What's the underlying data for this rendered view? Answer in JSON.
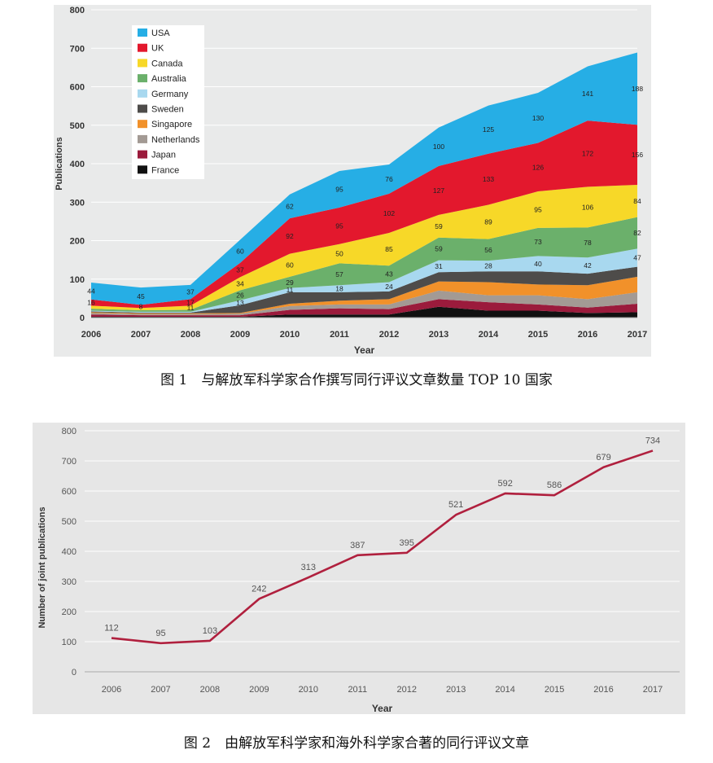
{
  "figures": [
    {
      "caption": "图 1　与解放军科学家合作撰写同行评议文章数量 TOP 10 国家"
    },
    {
      "caption": "图 2　由解放军科学家和海外科学家合著的同行评议文章"
    }
  ],
  "chart_data": [
    {
      "type": "area",
      "stacked": true,
      "xlabel": "Year",
      "ylabel": "Publications",
      "ylim": [
        0,
        800
      ],
      "yticks": [
        0,
        100,
        200,
        300,
        400,
        500,
        600,
        700,
        800
      ],
      "x": [
        "2006",
        "2007",
        "2008",
        "2009",
        "2010",
        "2011",
        "2012",
        "2013",
        "2014",
        "2015",
        "2016",
        "2017"
      ],
      "grid": true,
      "legend_position": "top-left",
      "series": [
        {
          "name": "France",
          "color": "#111111",
          "values": [
            2,
            2,
            2,
            2,
            8,
            8,
            8,
            28,
            18,
            18,
            12,
            14
          ],
          "labels": []
        },
        {
          "name": "Japan",
          "color": "#9b1b3c",
          "values": [
            6,
            4,
            4,
            4,
            12,
            16,
            14,
            20,
            22,
            16,
            14,
            22
          ],
          "labels": []
        },
        {
          "name": "Netherlands",
          "color": "#a39a94",
          "values": [
            4,
            3,
            3,
            4,
            10,
            10,
            12,
            22,
            18,
            24,
            22,
            30
          ],
          "labels": []
        },
        {
          "name": "Singapore",
          "color": "#f1912a",
          "values": [
            2,
            2,
            2,
            2,
            6,
            10,
            14,
            24,
            34,
            28,
            36,
            40
          ],
          "labels": []
        },
        {
          "name": "Sweden",
          "color": "#4e4c4a",
          "values": [
            2,
            2,
            2,
            20,
            30,
            22,
            20,
            24,
            28,
            34,
            30,
            26
          ],
          "labels": []
        },
        {
          "name": "Germany",
          "color": "#a8d8ef",
          "values": [
            2,
            2,
            2,
            13,
            11,
            18,
            24,
            31,
            28,
            40,
            42,
            47
          ],
          "labels": [
            "",
            "",
            "",
            "13",
            "11",
            "18",
            "24",
            "31",
            "28",
            "40",
            "42",
            "47"
          ]
        },
        {
          "name": "Australia",
          "color": "#6bb06b",
          "values": [
            5,
            4,
            5,
            26,
            29,
            57,
            43,
            59,
            56,
            73,
            78,
            82
          ],
          "labels": [
            "",
            "",
            "",
            "26",
            "29",
            "57",
            "43",
            "59",
            "56",
            "73",
            "78",
            "82"
          ]
        },
        {
          "name": "Canada",
          "color": "#f7d828",
          "values": [
            8,
            6,
            11,
            34,
            60,
            50,
            85,
            59,
            89,
            95,
            106,
            84
          ],
          "labels": [
            "",
            "",
            "11",
            "34",
            "60",
            "50",
            "85",
            "59",
            "89",
            "95",
            "106",
            "84"
          ]
        },
        {
          "name": "UK",
          "color": "#e3182d",
          "values": [
            16,
            8,
            17,
            37,
            92,
            95,
            102,
            127,
            133,
            126,
            172,
            156
          ],
          "labels": [
            "16",
            "8",
            "17",
            "37",
            "92",
            "95",
            "102",
            "127",
            "133",
            "126",
            "172",
            "156"
          ]
        },
        {
          "name": "USA",
          "color": "#26aee5",
          "values": [
            44,
            45,
            37,
            60,
            62,
            95,
            76,
            100,
            125,
            130,
            141,
            188
          ],
          "labels": [
            "44",
            "45",
            "37",
            "60",
            "62",
            "95",
            "76",
            "100",
            "125",
            "130",
            "141",
            "188"
          ]
        }
      ]
    },
    {
      "type": "line",
      "xlabel": "Year",
      "ylabel": "Number of joint publications",
      "ylim": [
        0,
        800
      ],
      "yticks": [
        0,
        100,
        200,
        300,
        400,
        500,
        600,
        700,
        800
      ],
      "grid": true,
      "x": [
        "2006",
        "2007",
        "2008",
        "2009",
        "2010",
        "2011",
        "2012",
        "2013",
        "2014",
        "2015",
        "2016",
        "2017"
      ],
      "series": [
        {
          "color": "#b0203e",
          "values": [
            112,
            95,
            103,
            242,
            313,
            387,
            395,
            521,
            592,
            586,
            679,
            734
          ]
        }
      ]
    }
  ]
}
